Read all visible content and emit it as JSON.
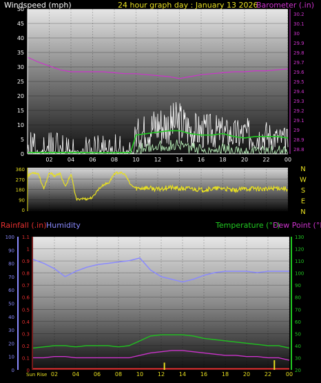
{
  "header": {
    "windspeed_label": "Windspeed (mph)",
    "title": "24 hour graph day : January 13 2026",
    "barometer_label": "Barometer (.in)"
  },
  "bottom_header": {
    "rainfall_label": "Rainfall (.in)",
    "humidity_label": "Humidity",
    "temperature_label": "Temperature (°F)",
    "dewpoint_label": "Dew Point (°F)"
  },
  "colors": {
    "wind": "#ffffff",
    "gust": "#22cc22",
    "avg": "#b8f0b8",
    "barometer": "#cc33cc",
    "direction": "#e8e020",
    "humidity": "#8a8aff",
    "temperature": "#22bb22",
    "dewpoint": "#cc33cc",
    "rain": "#e8e020"
  },
  "chart_data": [
    {
      "type": "line",
      "name": "wind-barometer",
      "x_ticks": [
        "02",
        "04",
        "06",
        "08",
        "10",
        "12",
        "14",
        "16",
        "18",
        "20",
        "22",
        "00"
      ],
      "y_left_ticks": [
        "0",
        "5",
        "10",
        "15",
        "20",
        "25",
        "30",
        "35",
        "40",
        "45",
        "50"
      ],
      "y_right_ticks": [
        "28.8",
        "28.9",
        "29",
        "29.1",
        "29.2",
        "29.3",
        "29.4",
        "29.5",
        "29.6",
        "29.7",
        "29.8",
        "29.9",
        "30",
        "30.1",
        "30.2"
      ],
      "ylim_left": [
        0,
        50
      ],
      "ylim_right": [
        28.75,
        30.25
      ],
      "barometer": {
        "x": [
          0,
          1,
          2,
          3,
          4,
          5,
          6,
          7,
          8,
          9,
          10,
          11,
          12,
          13,
          14,
          15,
          16,
          17,
          18,
          19,
          20,
          21,
          22,
          23,
          24
        ],
        "y": [
          29.75,
          29.7,
          29.66,
          29.62,
          29.6,
          29.6,
          29.6,
          29.6,
          29.59,
          29.58,
          29.58,
          29.57,
          29.56,
          29.55,
          29.53,
          29.55,
          29.57,
          29.58,
          29.59,
          29.6,
          29.6,
          29.61,
          29.61,
          29.62,
          29.63
        ]
      },
      "wind_avg": {
        "x": [
          0,
          2,
          4,
          6,
          8,
          9.5,
          10,
          11,
          12,
          13,
          14,
          15,
          16,
          17,
          18,
          19,
          20,
          21,
          22,
          23,
          24
        ],
        "y": [
          0.5,
          0.5,
          0.5,
          0.4,
          0.4,
          0.5,
          6.5,
          7,
          7.5,
          8,
          8,
          7,
          6.5,
          6.5,
          7,
          6,
          5.5,
          6,
          6,
          6,
          5.5
        ]
      },
      "wind_max_envelope": {
        "x": [
          0,
          2,
          4,
          6,
          8,
          9.5,
          10,
          11,
          12,
          13,
          14,
          15,
          16,
          17,
          18,
          19,
          20,
          21,
          22,
          23,
          24
        ],
        "y": [
          8,
          8,
          6,
          6,
          8,
          4,
          12,
          15,
          18,
          17,
          19,
          15,
          14,
          14,
          13,
          12,
          13,
          11,
          12,
          10,
          9
        ]
      }
    },
    {
      "type": "scatter",
      "name": "wind-direction",
      "y_ticks": [
        "0",
        "90",
        "180",
        "270",
        "360"
      ],
      "ylim": [
        0,
        360
      ],
      "compass_labels": [
        "N",
        "W",
        "S",
        "E",
        "N"
      ],
      "x": [
        0,
        0.5,
        1,
        1.5,
        2,
        2.5,
        3,
        3.5,
        4,
        4.5,
        5,
        5.5,
        6,
        6.5,
        7,
        7.5,
        8,
        8.5,
        9,
        9.5,
        10,
        11,
        12,
        13,
        14,
        15,
        16,
        17,
        18,
        19,
        20,
        21,
        22,
        23,
        24
      ],
      "y": [
        300,
        330,
        320,
        180,
        330,
        300,
        320,
        200,
        320,
        90,
        100,
        95,
        110,
        180,
        220,
        240,
        320,
        330,
        310,
        220,
        190,
        195,
        180,
        200,
        185,
        190,
        175,
        185,
        190,
        170,
        185,
        190,
        180,
        195,
        185
      ]
    },
    {
      "type": "line",
      "name": "temp-humidity-rain",
      "x_ticks": [
        "Sun Rise",
        "02",
        "04",
        "06",
        "08",
        "10",
        "12",
        "14",
        "16",
        "18",
        "20",
        "22",
        "00"
      ],
      "y_humidity_ticks": [
        "0",
        "10",
        "20",
        "30",
        "40",
        "50",
        "60",
        "70",
        "80",
        "90",
        "100"
      ],
      "y_rain_ticks": [
        "0",
        "0.1",
        "0.2",
        "0.3",
        "0.4",
        "0.5",
        "0.6",
        "0.7",
        "0.8",
        "0.9",
        "1",
        "1.1"
      ],
      "y_temp_ticks": [
        "20",
        "30",
        "40",
        "50",
        "60",
        "70",
        "80",
        "90",
        "100",
        "110",
        "120",
        "130"
      ],
      "humidity": {
        "x": [
          0,
          1,
          2,
          3,
          4,
          5,
          6,
          7,
          8,
          9,
          10,
          11,
          12,
          13,
          14,
          15,
          16,
          17,
          18,
          19,
          20,
          21,
          22,
          23,
          24
        ],
        "y": [
          83,
          80,
          76,
          70,
          74,
          77,
          79,
          80,
          81,
          82,
          84,
          75,
          70,
          68,
          66,
          68,
          71,
          73,
          74,
          74,
          74,
          73,
          74,
          74,
          74
        ]
      },
      "temperature": {
        "x": [
          0,
          1,
          2,
          3,
          4,
          5,
          6,
          7,
          8,
          9,
          10,
          11,
          12,
          13,
          14,
          15,
          16,
          17,
          18,
          19,
          20,
          21,
          22,
          23,
          24
        ],
        "y": [
          38,
          39,
          40,
          40,
          39,
          40,
          40,
          40,
          39,
          40,
          44,
          48,
          49,
          49,
          49,
          48,
          46,
          45,
          44,
          43,
          42,
          41,
          40,
          40,
          38
        ]
      },
      "dewpoint": {
        "x": [
          0,
          1,
          2,
          3,
          4,
          5,
          6,
          7,
          8,
          9,
          10,
          11,
          12,
          13,
          14,
          15,
          16,
          17,
          18,
          19,
          20,
          21,
          22,
          23,
          24
        ],
        "y": [
          30,
          30,
          31,
          31,
          30,
          30,
          30,
          30,
          30,
          30,
          32,
          34,
          35,
          36,
          36,
          35,
          34,
          33,
          32,
          32,
          31,
          31,
          30,
          30,
          28
        ]
      },
      "rain_spikes": {
        "x": [
          12.3,
          22.6
        ],
        "y": [
          0.06,
          0.08
        ]
      }
    }
  ]
}
